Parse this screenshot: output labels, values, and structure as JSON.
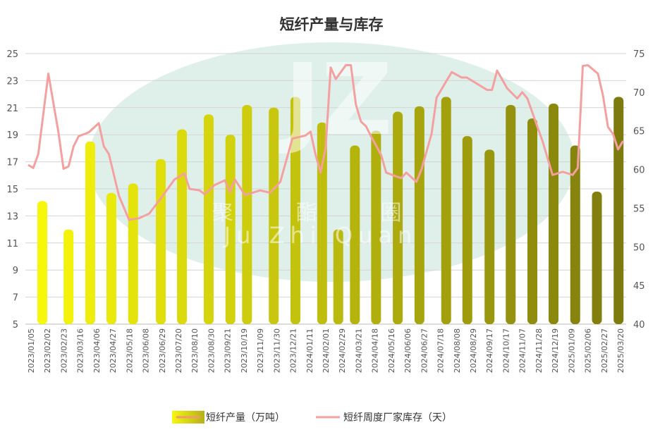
{
  "chart_data": {
    "type": "bar+line",
    "title": "短纤产量与库存",
    "watermark": {
      "logo": "JZ",
      "cn": "聚 酯 圈",
      "en": "Ju Zhi Quan"
    },
    "x_tick_labels": [
      "2023/01/05",
      "2023/02/02",
      "2023/02/23",
      "2023/03/16",
      "2023/04/06",
      "2023/04/27",
      "2023/05/18",
      "2023/06/08",
      "2023/06/29",
      "2023/07/20",
      "2023/08/10",
      "2023/08/30",
      "2023/09/21",
      "2023/10/19",
      "2023/11/09",
      "2023/11/30",
      "2023/12/21",
      "2024/01/11",
      "2024/02/01",
      "2024/02/29",
      "2024/03/21",
      "2024/04/18",
      "2024/05/16",
      "2024/06/06",
      "2024/06/27",
      "2024/07/18",
      "2024/08/08",
      "2024/08/29",
      "2024/09/17",
      "2024/10/17",
      "2024/11/07",
      "2024/11/28",
      "2024/12/19",
      "2025/01/09",
      "2025/02/06",
      "2025/02/27",
      "2025/03/20"
    ],
    "x_unit": "weeks since 2023/01/05 (labels every 3 weeks)",
    "left_axis": {
      "ylim": [
        5,
        25
      ],
      "ticks": [
        5,
        7,
        9,
        11,
        13,
        15,
        17,
        19,
        21,
        23,
        25
      ]
    },
    "right_axis": {
      "ylim": [
        40,
        75
      ],
      "ticks": [
        40,
        45,
        50,
        55,
        60,
        65,
        70,
        75
      ]
    },
    "grid": true,
    "legend_position": "bottom",
    "series": [
      {
        "name": "短纤产量（万吨）",
        "type": "bar",
        "axis": "left",
        "color_start": "#f7f70c",
        "color_end": "#7d7a0e",
        "months": [
          "2023-01",
          "2023-02",
          "2023-03",
          "2023-04",
          "2023-05",
          "2023-06",
          "2023-07",
          "2023-08",
          "2023-09",
          "2023-10",
          "2023-11",
          "2023-12",
          "2024-01",
          "2024-02",
          "2024-03",
          "2024-04",
          "2024-05",
          "2024-06",
          "2024-07",
          "2024-08",
          "2024-09",
          "2024-10",
          "2024-11",
          "2024-12",
          "2025-01",
          "2025-02",
          "2025-03"
        ],
        "week": [
          2.8,
          8,
          12.3,
          16.5,
          20.8,
          26.3,
          30.5,
          35.8,
          40.1,
          43.4,
          48.7,
          53,
          58.3,
          61.5,
          64.8,
          69,
          73.3,
          77.6,
          82.9,
          87.1,
          91.5,
          95.7,
          100,
          104.2,
          108.5,
          112.8,
          117.1
        ],
        "values": [
          14.1,
          12.0,
          18.5,
          14.7,
          15.4,
          17.2,
          19.4,
          20.5,
          19.0,
          21.2,
          21.0,
          21.8,
          19.9,
          12.0,
          18.2,
          19.3,
          20.7,
          21.1,
          21.8,
          18.9,
          17.9,
          21.2,
          20.2,
          21.3,
          18.2,
          14.8,
          21.8
        ]
      },
      {
        "name": "短纤周度厂家库存（天）",
        "type": "line",
        "axis": "right",
        "color": "#f4a0a0",
        "week": [
          0,
          1,
          2,
          4,
          6,
          7,
          8,
          9,
          10,
          12,
          14,
          15,
          16,
          18,
          20,
          22,
          24,
          26,
          29,
          31,
          32,
          34,
          35,
          37,
          39,
          40,
          41,
          43,
          46,
          48,
          50,
          52.4,
          55,
          56,
          57,
          58,
          59,
          60,
          61,
          63,
          64,
          65,
          66,
          67,
          68,
          70,
          71,
          73,
          74,
          75,
          77,
          78,
          80,
          81,
          84,
          86,
          87,
          91,
          92,
          93,
          95,
          97,
          98,
          99,
          102,
          104,
          106,
          108,
          109,
          110,
          111,
          113,
          114,
          115,
          116,
          117,
          118
        ],
        "values": [
          60.6,
          60.2,
          62,
          72.4,
          64.8,
          60.1,
          60.4,
          63,
          64.3,
          64.8,
          66,
          63,
          62,
          56.6,
          53.5,
          53.7,
          54.3,
          56,
          58.7,
          59.5,
          57.5,
          57.3,
          56.8,
          58,
          58.6,
          57.1,
          58.7,
          56.7,
          57.3,
          57,
          58.4,
          64,
          64.4,
          64.9,
          61.9,
          59.6,
          62.8,
          73.2,
          71.7,
          73.5,
          73.5,
          68.4,
          66.2,
          65.6,
          64.3,
          61.9,
          59.6,
          59.1,
          58.9,
          59.6,
          58.4,
          60,
          64.6,
          69.3,
          72.6,
          71.9,
          71.9,
          70.3,
          70.3,
          72.8,
          70.5,
          69.2,
          70,
          69.2,
          63.7,
          59.3,
          59.7,
          59.3,
          60.2,
          73.4,
          73.5,
          72.4,
          69.6,
          65.5,
          64.6,
          62.6,
          63.7
        ]
      }
    ]
  }
}
